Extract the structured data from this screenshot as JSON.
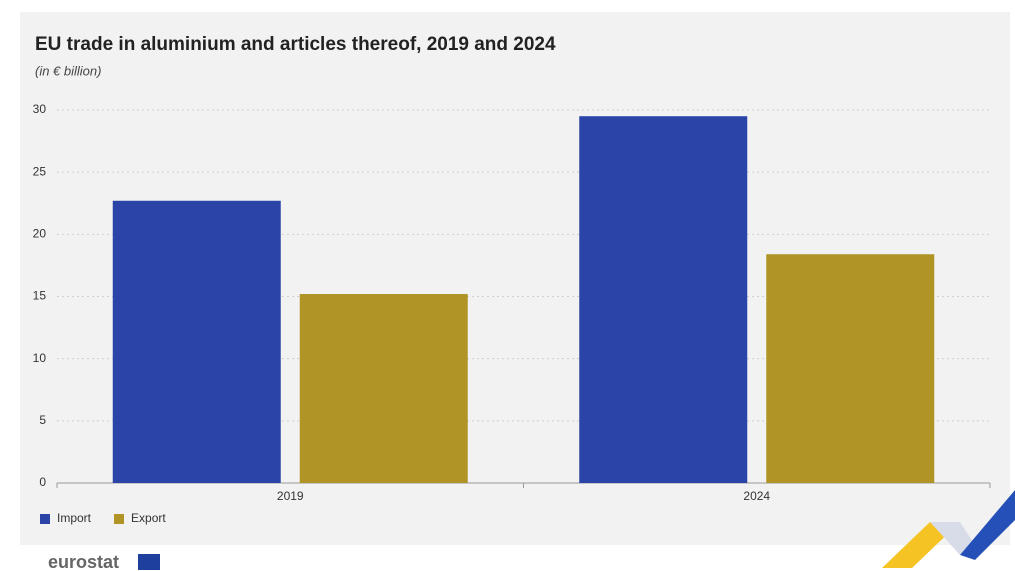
{
  "chart_data": {
    "type": "bar",
    "title": "EU trade in aluminium and articles thereof, 2019 and 2024",
    "subtitle": "(in € billion)",
    "categories": [
      "2019",
      "2024"
    ],
    "series": [
      {
        "name": "Import",
        "color": "#2a44a8",
        "values": [
          22.7,
          29.5
        ]
      },
      {
        "name": "Export",
        "color": "#b09426",
        "values": [
          15.2,
          18.4
        ]
      }
    ],
    "ylim": [
      0,
      30
    ],
    "yticks": [
      0,
      5,
      10,
      15,
      20,
      25,
      30
    ],
    "grid": true,
    "legend": "bottom-left"
  },
  "logo": "eurostat"
}
